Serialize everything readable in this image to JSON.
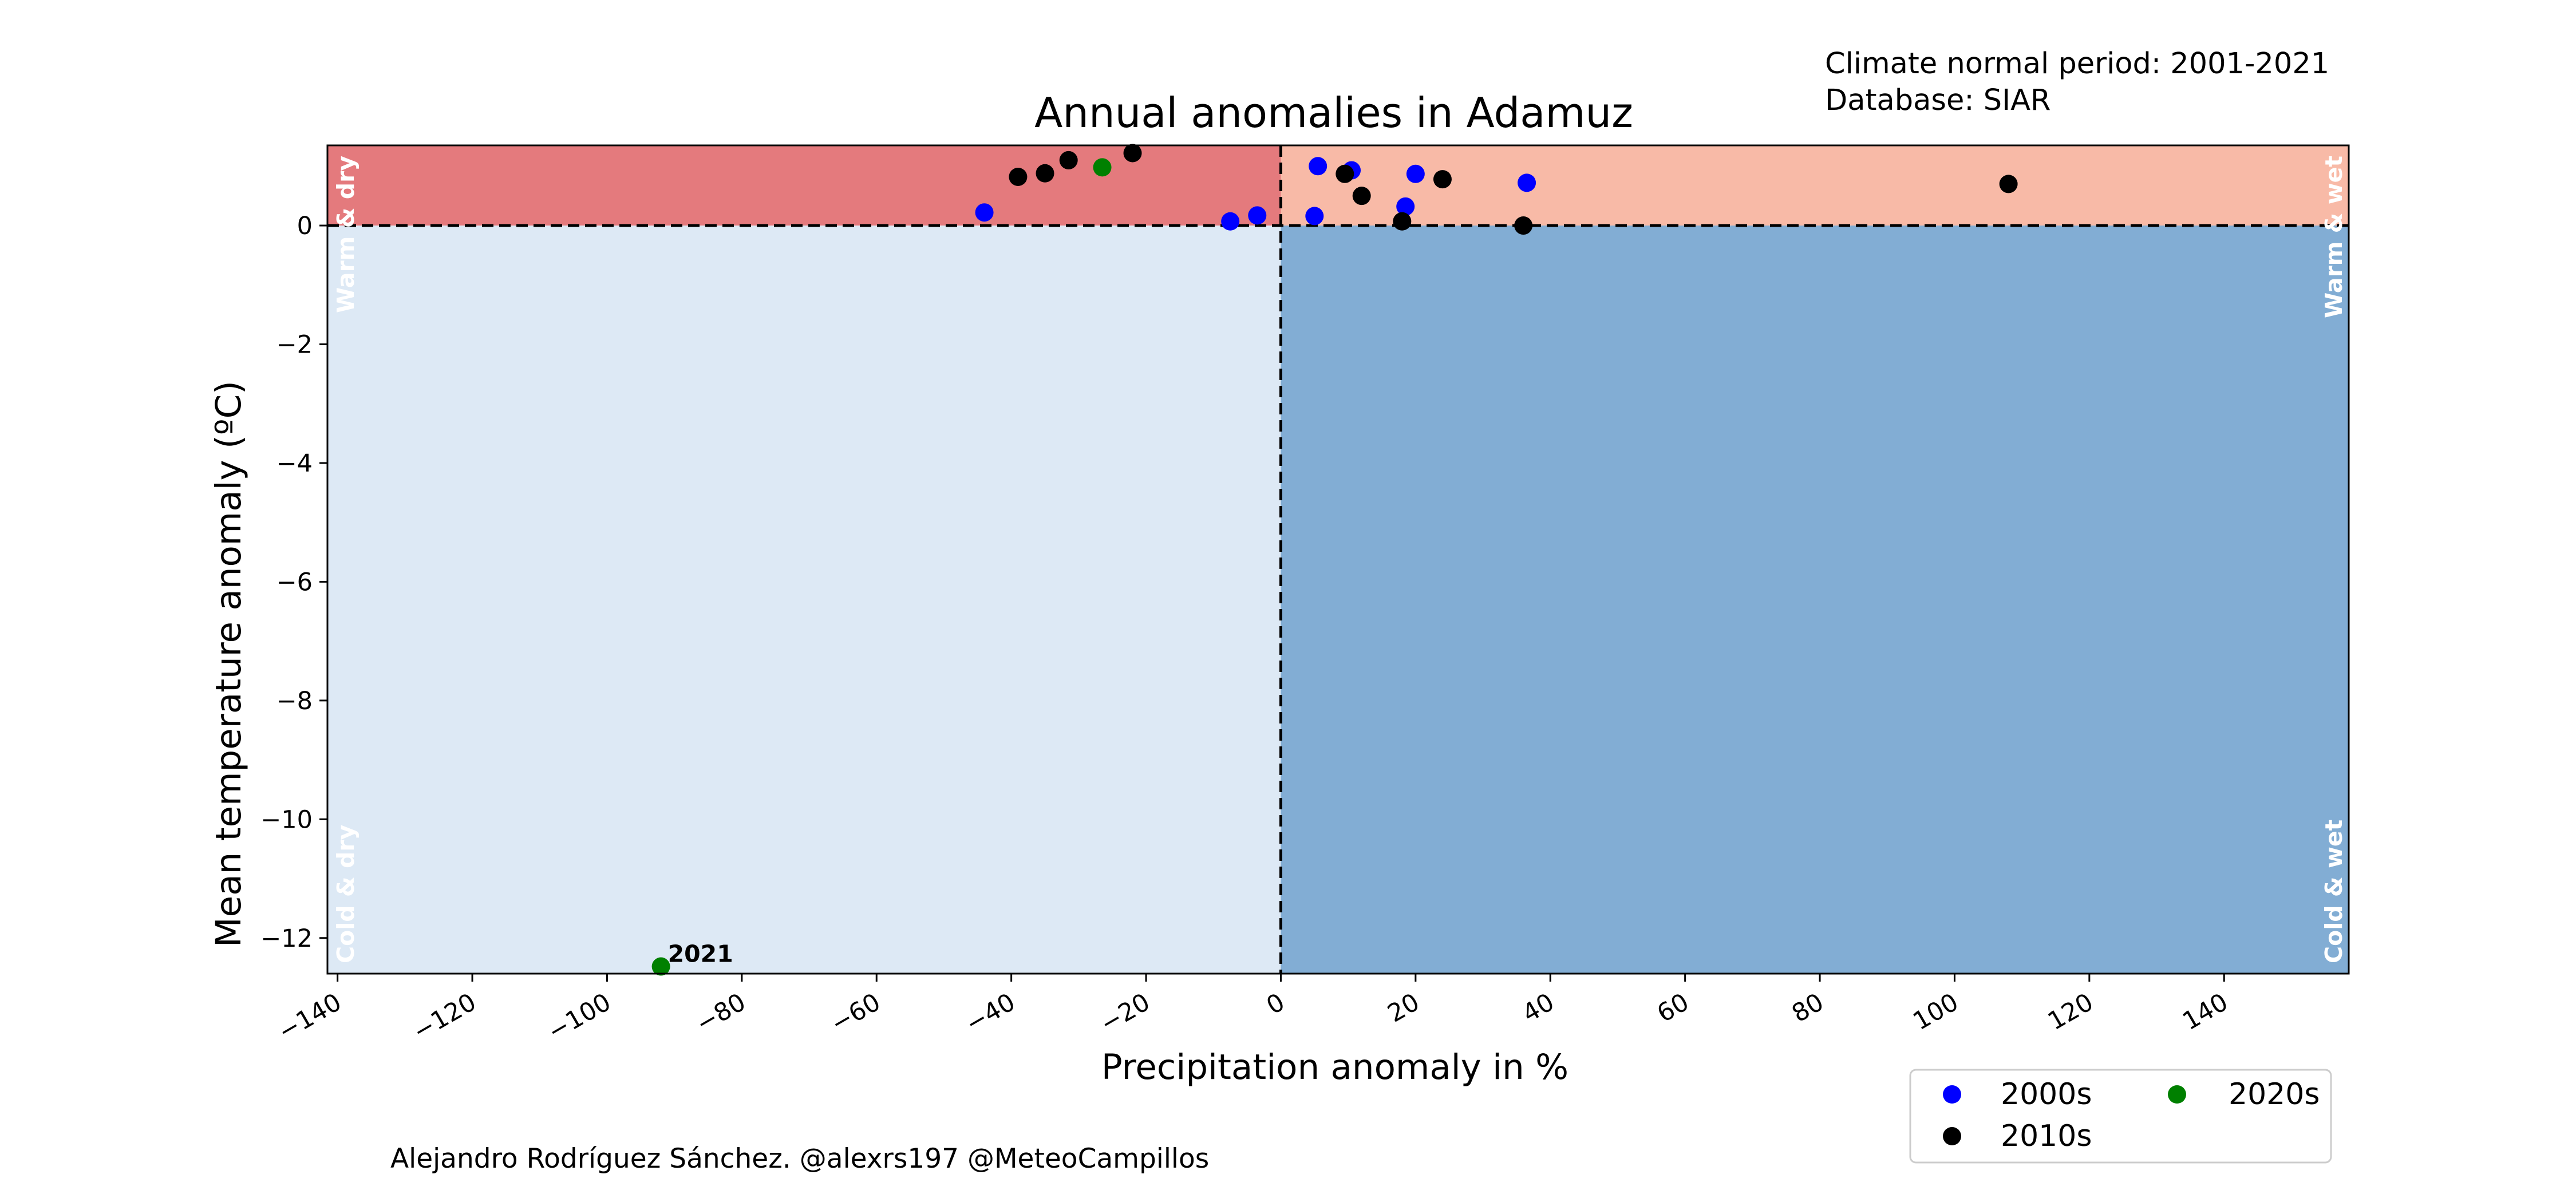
{
  "meta": {
    "normal_period": "Climate normal period: 2001-2021",
    "database": "Database: SIAR"
  },
  "credit": "Alejandro Rodríguez Sánchez. @alexrs197 @MeteoCampillos",
  "quadrants": {
    "warm_dry": "Warm & dry",
    "warm_wet": "Warm & wet",
    "cold_dry": "Cold & dry",
    "cold_wet": "Cold & wet"
  },
  "colors": {
    "warm_dry": "#e47a7d",
    "warm_wet": "#f8baa7",
    "cold_dry": "#dde9f5",
    "cold_wet": "#82add4",
    "2000s": "#0000ff",
    "2010s": "#000000",
    "2020s": "#008000"
  },
  "chart_data": {
    "type": "scatter",
    "title": "Annual anomalies in Adamuz",
    "xlabel": "Precipitation anomaly in %",
    "ylabel": "Mean temperature anomaly (ºC)",
    "xlim": [
      -141.5,
      158.5
    ],
    "ylim": [
      -12.6,
      1.35
    ],
    "xticks": [
      -140,
      -120,
      -100,
      -80,
      -60,
      -40,
      -20,
      0,
      20,
      40,
      60,
      80,
      100,
      120,
      140
    ],
    "xtick_labels": [
      "−140",
      "−120",
      "−100",
      "−80",
      "−60",
      "−40",
      "−20",
      "0",
      "20",
      "40",
      "60",
      "80",
      "100",
      "120",
      "140"
    ],
    "yticks": [
      0,
      -2,
      -4,
      -6,
      -8,
      -10,
      -12
    ],
    "ytick_labels": [
      "0",
      "−2",
      "−4",
      "−6",
      "−8",
      "−10",
      "−12"
    ],
    "reference_lines": {
      "x": 0,
      "y": 0
    },
    "legend_position": "bottom-right",
    "series": [
      {
        "name": "2000s",
        "color": "#0000ff",
        "points": [
          [
            -44,
            0.22
          ],
          [
            -7.5,
            0.07
          ],
          [
            -3.5,
            0.17
          ],
          [
            5,
            0.16
          ],
          [
            5.5,
            1.0
          ],
          [
            10.5,
            0.93
          ],
          [
            18.5,
            0.32
          ],
          [
            20,
            0.87
          ],
          [
            36.5,
            0.72
          ]
        ]
      },
      {
        "name": "2010s",
        "color": "#000000",
        "points": [
          [
            -39,
            0.82
          ],
          [
            -35,
            0.88
          ],
          [
            -31.5,
            1.1
          ],
          [
            -22,
            1.22
          ],
          [
            9.5,
            0.87
          ],
          [
            12,
            0.5
          ],
          [
            18,
            0.07
          ],
          [
            24,
            0.78
          ],
          [
            36,
            0.0
          ],
          [
            108,
            0.7
          ]
        ]
      },
      {
        "name": "2020s",
        "color": "#008000",
        "points": [
          [
            -26.5,
            0.98
          ],
          [
            -92,
            -12.48
          ]
        ]
      }
    ],
    "annotations": [
      {
        "text": "2021",
        "x": -92,
        "y": -12.48
      }
    ]
  }
}
